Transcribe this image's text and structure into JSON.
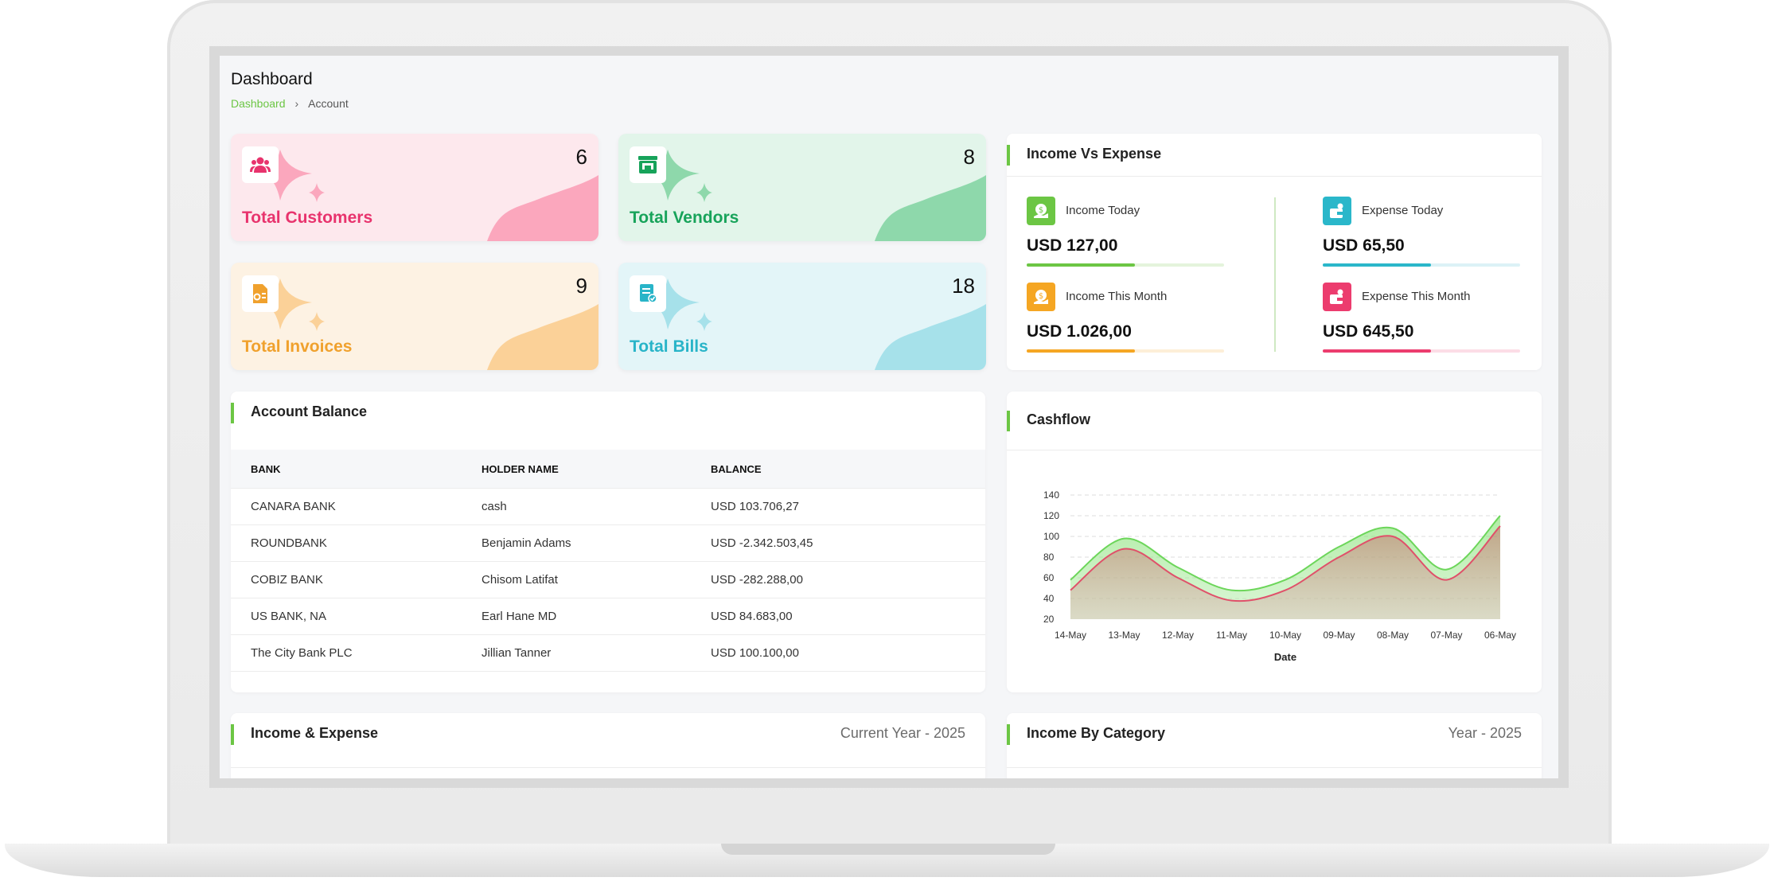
{
  "header": {
    "title": "Dashboard",
    "breadcrumb": [
      "Dashboard",
      "Account"
    ]
  },
  "stats": [
    {
      "label": "Total Customers",
      "value": "6",
      "icon": "users-icon",
      "color": "#e8336d",
      "bg": "#fde8ed",
      "wave": "#fba7bd"
    },
    {
      "label": "Total Vendors",
      "value": "8",
      "icon": "store-icon",
      "color": "#17a35a",
      "bg": "#e2f5ea",
      "wave": "#8ed8ab"
    },
    {
      "label": "Total Invoices",
      "value": "9",
      "icon": "invoice-icon",
      "color": "#f0a12d",
      "bg": "#fdf2e3",
      "wave": "#fbd198"
    },
    {
      "label": "Total Bills",
      "value": "18",
      "icon": "bill-icon",
      "color": "#28b4c8",
      "bg": "#e3f5f8",
      "wave": "#a6e1ea"
    }
  ],
  "income_vs_expense": {
    "title": "Income Vs Expense",
    "items": [
      {
        "label": "Income Today",
        "value": "USD 127,00",
        "progress": 0.55,
        "color": "#6cc644",
        "track": "#e4f4dc",
        "icon": "income-icon"
      },
      {
        "label": "Expense Today",
        "value": "USD 65,50",
        "progress": 0.55,
        "color": "#2ab7ca",
        "track": "#dcf2f6",
        "icon": "expense-icon"
      },
      {
        "label": "Income This Month",
        "value": "USD 1.026,00",
        "progress": 0.55,
        "color": "#f5a623",
        "track": "#fdefd8",
        "icon": "income-icon"
      },
      {
        "label": "Expense This Month",
        "value": "USD 645,50",
        "progress": 0.55,
        "color": "#ec3c6e",
        "track": "#fcdde6",
        "icon": "expense-icon"
      }
    ]
  },
  "account_balance": {
    "title": "Account Balance",
    "columns": [
      "BANK",
      "HOLDER NAME",
      "BALANCE"
    ],
    "rows": [
      [
        "CANARA BANK",
        "cash",
        "USD 103.706,27"
      ],
      [
        "ROUNDBANK",
        "Benjamin Adams",
        "USD -2.342.503,45"
      ],
      [
        "COBIZ BANK",
        "Chisom Latifat",
        "USD -282.288,00"
      ],
      [
        "US BANK, NA",
        "Earl Hane MD",
        "USD 84.683,00"
      ],
      [
        "The City Bank PLC",
        "Jillian Tanner",
        "USD 100.100,00"
      ]
    ]
  },
  "cashflow": {
    "title": "Cashflow"
  },
  "chart_data": {
    "type": "area",
    "categories": [
      "14-May",
      "13-May",
      "12-May",
      "11-May",
      "10-May",
      "09-May",
      "08-May",
      "07-May",
      "06-May"
    ],
    "series": [
      {
        "color": "#6cd65a",
        "values": [
          58,
          98,
          70,
          48,
          58,
          90,
          108,
          68,
          120
        ]
      },
      {
        "color": "#e0506a",
        "values": [
          48,
          88,
          60,
          38,
          48,
          80,
          100,
          58,
          110
        ]
      }
    ],
    "xlabel": "Date",
    "ylabel": "",
    "ylim": [
      20,
      140
    ],
    "yticks": [
      20,
      40,
      60,
      80,
      100,
      120,
      140
    ],
    "grid": true
  },
  "income_expense": {
    "title": "Income & Expense",
    "period": "Current Year - 2025"
  },
  "income_by_category": {
    "title": "Income By Category",
    "period": "Year - 2025"
  }
}
